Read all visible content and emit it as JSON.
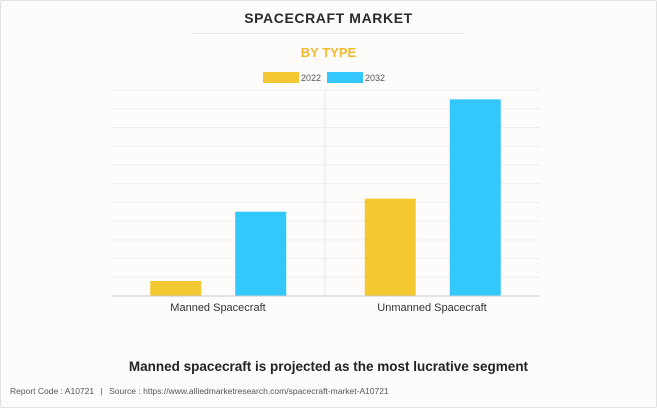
{
  "header": {
    "title": "SPACECRAFT MARKET",
    "subtitle": "BY TYPE"
  },
  "chart_data": {
    "type": "bar",
    "title": "SPACECRAFT MARKET",
    "subtitle": "BY TYPE",
    "categories": [
      "Manned Spacecraft",
      "Unmanned Spacecraft"
    ],
    "series": [
      {
        "name": "2022",
        "values": [
          0.8,
          5.2
        ],
        "color": "#f4c830"
      },
      {
        "name": "2032",
        "values": [
          4.5,
          10.5
        ],
        "color": "#33c7fb"
      }
    ],
    "ylim": [
      0,
      11
    ],
    "xlabel": "",
    "ylabel": "",
    "grid": true,
    "legend": "top-center",
    "y_tick_labels_shown": false
  },
  "caption": "Manned spacecraft is projected as the most lucrative segment",
  "footer": {
    "report_code": "Report Code : A10721",
    "separator": "|",
    "source": "Source : https://www.alliedmarketresearch.com/spacecraft-market-A10721"
  }
}
